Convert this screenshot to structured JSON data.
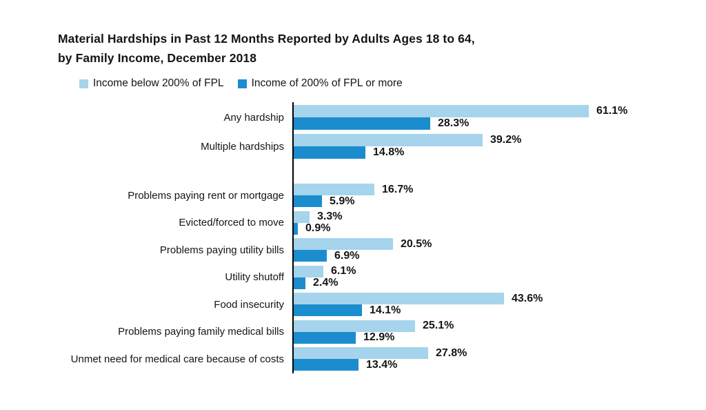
{
  "colors": {
    "light_blue": "#a5d4ec",
    "dark_blue": "#1b8dce",
    "axis": "#000000",
    "text": "#141414",
    "background": "#ffffff"
  },
  "title_lines": [
    "Material Hardships in Past 12 Months Reported by Adults Ages 18 to 64,",
    "by Family Income, December 2018"
  ],
  "chart_data": {
    "type": "bar",
    "orientation": "horizontal",
    "title": "Material Hardships in Past 12 Months Reported by Adults Ages 18 to 64, by Family Income, December 2018",
    "unit": "%",
    "xlim": [
      0,
      65
    ],
    "grid": false,
    "legend_position": "top",
    "group_break_after_index": 1,
    "categories": [
      "Any hardship",
      "Multiple hardships",
      "Problems paying rent or mortgage",
      "Evicted/forced to move",
      "Problems paying utility bills",
      "Utility shutoff",
      "Food insecurity",
      "Problems paying family medical bills",
      "Unmet need for medical care because of costs"
    ],
    "series": [
      {
        "name": "Income below 200% of FPL",
        "color": "#a5d4ec",
        "values": [
          61.1,
          39.2,
          16.7,
          3.3,
          20.5,
          6.1,
          43.6,
          25.1,
          27.8
        ],
        "labels": [
          "61.1%",
          "39.2%",
          "16.7%",
          "3.3%",
          "20.5%",
          "6.1%",
          "43.6%",
          "25.1%",
          "27.8%"
        ]
      },
      {
        "name": "Income of 200% of FPL or more",
        "color": "#1b8dce",
        "values": [
          28.3,
          14.8,
          5.9,
          0.9,
          6.9,
          2.4,
          14.1,
          12.9,
          13.4
        ],
        "labels": [
          "28.3%",
          "14.8%",
          "5.9%",
          "0.9%",
          "6.9%",
          "2.4%",
          "14.1%",
          "12.9%",
          "13.4%"
        ]
      }
    ]
  },
  "legend": [
    {
      "label": "Income below 200% of FPL"
    },
    {
      "label": "Income of 200% of FPL or more"
    }
  ]
}
